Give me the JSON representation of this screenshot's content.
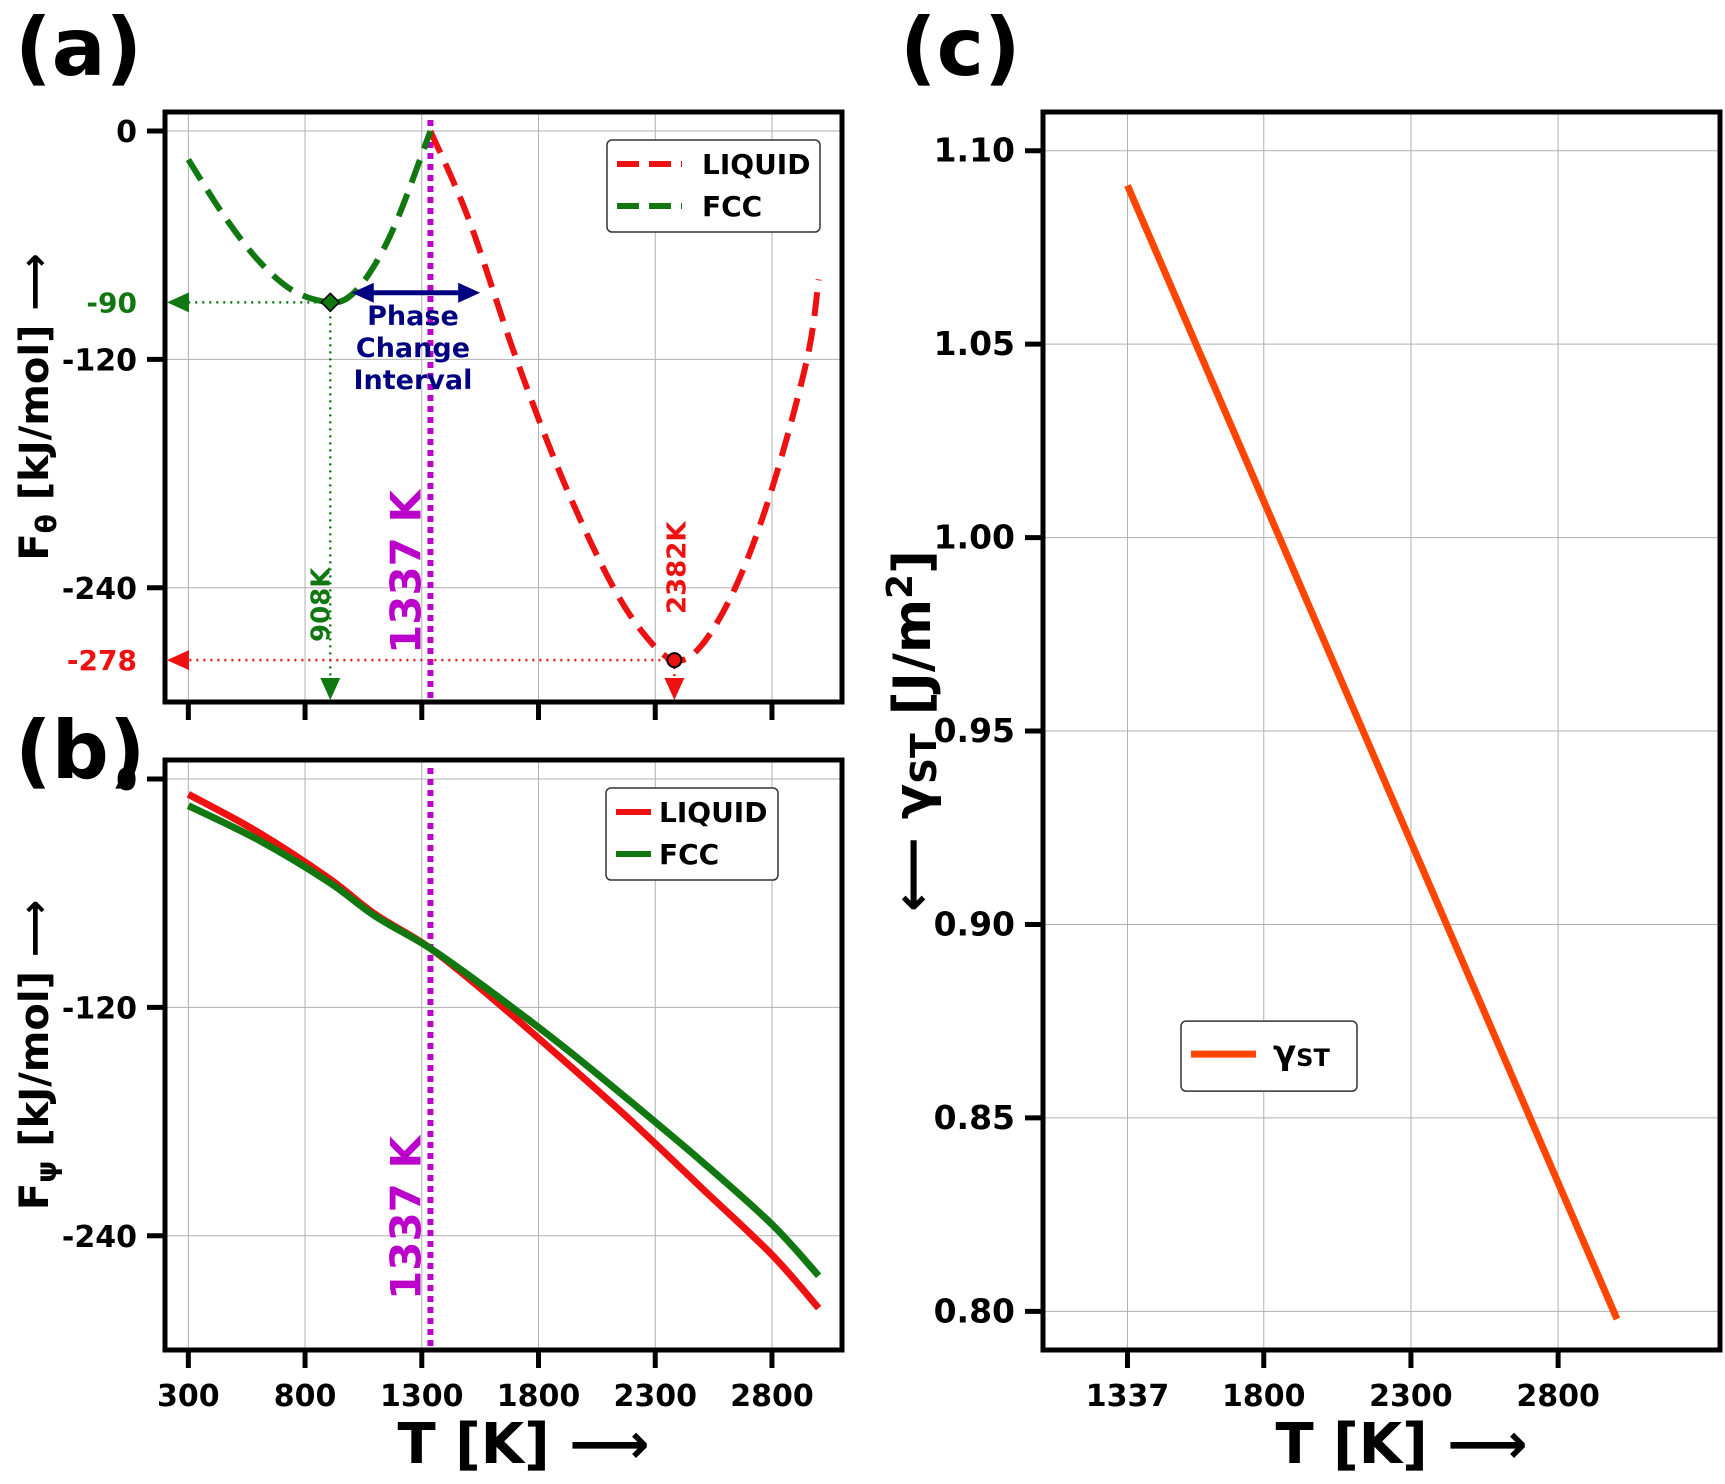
{
  "chart_data": [
    {
      "panel": "(a)",
      "type": "line",
      "xlim": [
        200,
        3100
      ],
      "ylim": [
        -300,
        10
      ],
      "xticks": [
        300,
        800,
        1300,
        1800,
        2300,
        2800
      ],
      "yticks": [
        0,
        -120,
        -240
      ],
      "ylabel": "F",
      "ylabel_sub": "θ",
      "ylabel_unit": " [kJ/mol]",
      "ylabel_arrow": "⟶",
      "grid": true,
      "legend_position": "top-right",
      "series": [
        {
          "name": "LIQUID",
          "color": "#ee1111",
          "style": "dashed",
          "x": [
            1337,
            1500,
            1700,
            1900,
            2100,
            2250,
            2382,
            2500,
            2650,
            2800,
            2950,
            3000
          ],
          "y": [
            0,
            -46,
            -118,
            -182,
            -235,
            -264,
            -278,
            -270,
            -238,
            -188,
            -120,
            -78
          ]
        },
        {
          "name": "FCC",
          "color": "#117711",
          "style": "dashed",
          "x": [
            300,
            450,
            600,
            750,
            908,
            1000,
            1100,
            1200,
            1337
          ],
          "y": [
            -15,
            -44,
            -68,
            -84,
            -90,
            -86,
            -70,
            -45,
            0
          ]
        }
      ],
      "vline": {
        "x": 1337,
        "label": "1337 K",
        "color": "#bb00cc"
      },
      "markers": [
        {
          "series": "FCC",
          "x": 908,
          "y": -90,
          "xlabel": "908K",
          "ylabel": "-90",
          "color": "#117711",
          "marker": "diamond"
        },
        {
          "series": "LIQUID",
          "x": 2382,
          "y": -278,
          "xlabel": "2382K",
          "ylabel": "-278",
          "color": "#ee1111",
          "marker": "circle"
        }
      ],
      "interval_annotation": {
        "x_start": 1000,
        "x_end": 1550,
        "y": -85,
        "lines": [
          "Phase",
          "Change",
          "Interval"
        ],
        "color": "#000080"
      }
    },
    {
      "panel": "(b)",
      "type": "line",
      "xlim": [
        200,
        3100
      ],
      "ylim": [
        -300,
        10
      ],
      "xticks": [
        300,
        800,
        1300,
        1800,
        2300,
        2800
      ],
      "yticks": [
        0,
        -120,
        -240
      ],
      "ylabel": "F",
      "ylabel_sub": "ψ",
      "ylabel_unit": " [kJ/mol]",
      "ylabel_arrow": "⟶",
      "xlabel": "T [K]",
      "xlabel_arrow": "⟶",
      "grid": true,
      "legend_position": "top-right",
      "series": [
        {
          "name": "LIQUID",
          "color": "#ee1111",
          "style": "solid",
          "x": [
            300,
            600,
            900,
            1100,
            1337,
            1600,
            1900,
            2200,
            2500,
            2800,
            3000
          ],
          "y": [
            -8,
            -28,
            -52,
            -71,
            -89,
            -115,
            -147,
            -180,
            -215,
            -250,
            -278
          ]
        },
        {
          "name": "FCC",
          "color": "#117711",
          "style": "solid",
          "x": [
            300,
            600,
            900,
            1100,
            1337,
            1600,
            1900,
            2200,
            2500,
            2800,
            3000
          ],
          "y": [
            -14,
            -32,
            -54,
            -72,
            -89,
            -112,
            -140,
            -170,
            -201,
            -234,
            -261
          ]
        }
      ],
      "vline": {
        "x": 1337,
        "label": "1337 K",
        "color": "#bb00cc"
      }
    },
    {
      "panel": "(c)",
      "type": "line",
      "xlim": [
        1050,
        3350
      ],
      "ylim": [
        0.79,
        1.11
      ],
      "xticks": [
        1337,
        1800,
        2300,
        2800
      ],
      "yticks": [
        0.8,
        0.85,
        0.9,
        0.95,
        1.0,
        1.05,
        1.1
      ],
      "ylabel_arrow": "⟵",
      "ylabel": "γ",
      "ylabel_sub": "ST",
      "ylabel_unit": " [J/m",
      "ylabel_sup": "2",
      "ylabel_close": "]",
      "xlabel": "T [K]",
      "xlabel_arrow": "⟶",
      "grid": true,
      "legend_position": "center-left",
      "series": [
        {
          "name": "γ",
          "name_sub": "ST",
          "color": "#ff4500",
          "style": "solid",
          "x": [
            1337,
            3000
          ],
          "y": [
            1.091,
            0.798
          ]
        }
      ]
    }
  ]
}
